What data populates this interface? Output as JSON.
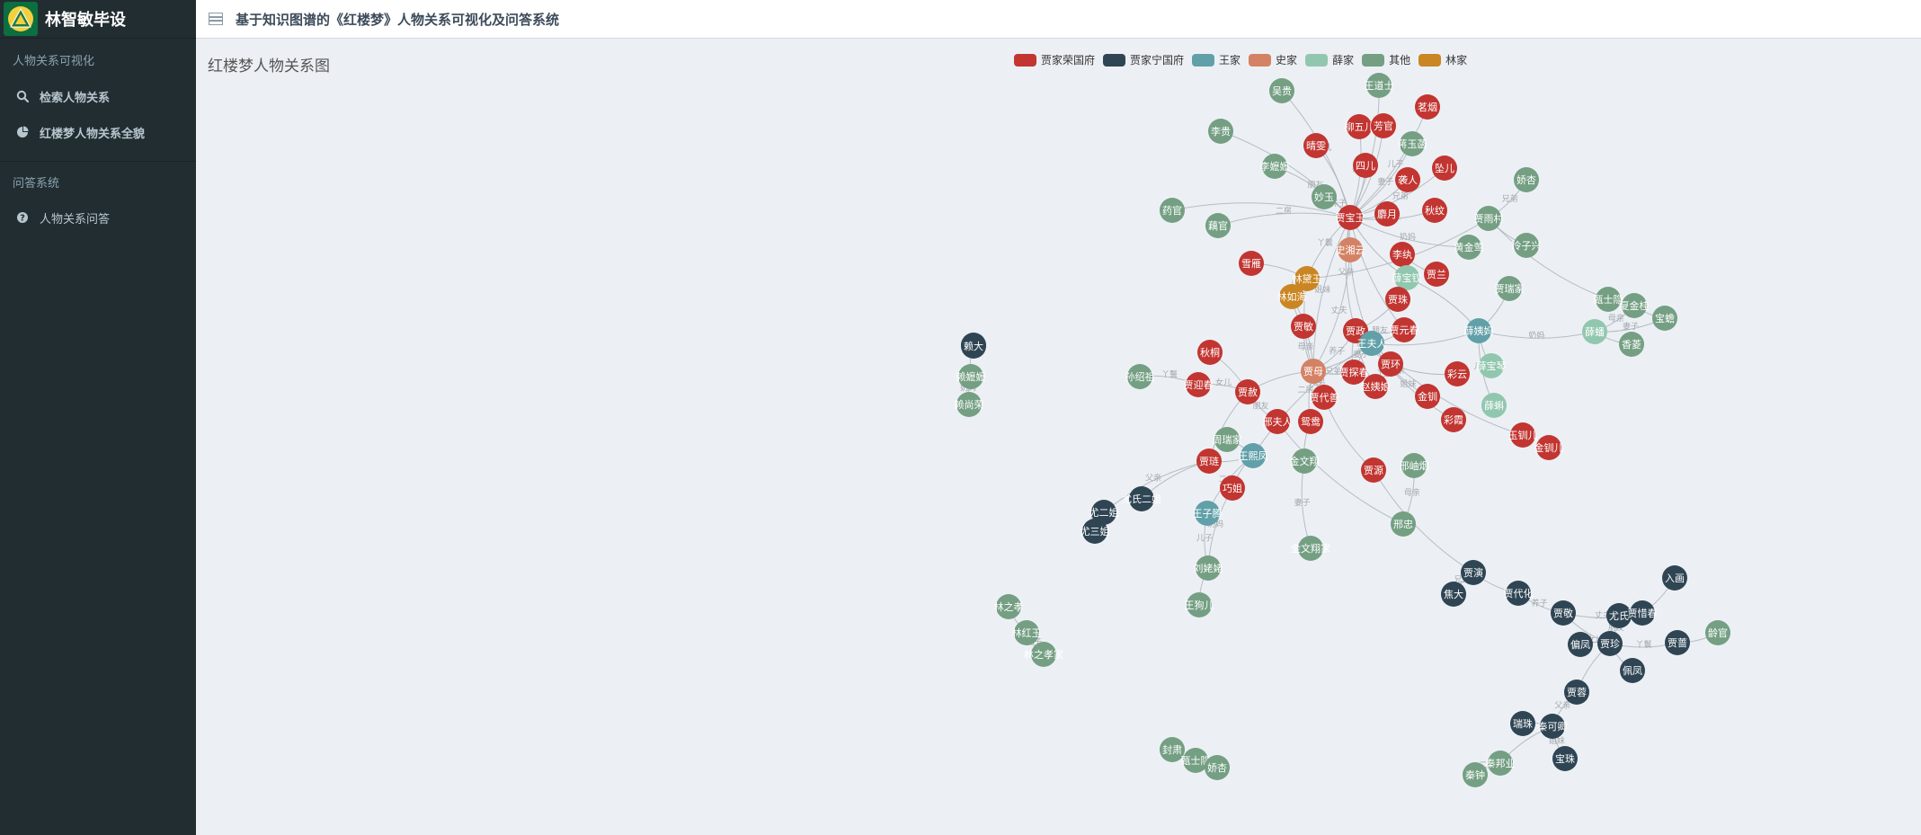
{
  "app": {
    "brand_title": "林智敏毕设",
    "page_title": "基于知识图谱的《红楼梦》人物关系可视化及问答系统"
  },
  "sidebar": {
    "section1": "人物关系可视化",
    "items1": [
      {
        "label": "检索人物关系",
        "icon": "search-icon"
      },
      {
        "label": "红楼梦人物关系全貌",
        "icon": "pie-chart-icon"
      }
    ],
    "section2": "问答系统",
    "items2": [
      {
        "label": "人物关系问答",
        "icon": "question-circle-icon"
      }
    ]
  },
  "graph": {
    "title": "红楼梦人物关系图",
    "legend": [
      {
        "label": "贾家荣国府",
        "color": "#c23531"
      },
      {
        "label": "贾家宁国府",
        "color": "#2f4554"
      },
      {
        "label": "王家",
        "color": "#61a0a8"
      },
      {
        "label": "史家",
        "color": "#d48265"
      },
      {
        "label": "薛家",
        "color": "#91c7ae"
      },
      {
        "label": "其他",
        "color": "#749f83"
      },
      {
        "label": "林家",
        "color": "#ca8622"
      }
    ],
    "nodes": [
      {
        "id": "吴贵",
        "g": 5
      },
      {
        "id": "王道士",
        "g": 5
      },
      {
        "id": "茗烟",
        "g": 0
      },
      {
        "id": "李贵",
        "g": 5
      },
      {
        "id": "晴雯",
        "g": 0
      },
      {
        "id": "柳五儿",
        "g": 0
      },
      {
        "id": "芳官",
        "g": 0
      },
      {
        "id": "蒋玉菡",
        "g": 5
      },
      {
        "id": "四儿",
        "g": 0
      },
      {
        "id": "坠儿",
        "g": 0
      },
      {
        "id": "娇杏",
        "g": 5
      },
      {
        "id": "李嬷嬷",
        "g": 5
      },
      {
        "id": "袭人",
        "g": 0
      },
      {
        "id": "妙玉",
        "g": 5
      },
      {
        "id": "药官",
        "g": 5
      },
      {
        "id": "藕官",
        "g": 5
      },
      {
        "id": "贾宝玉",
        "g": 0
      },
      {
        "id": "麝月",
        "g": 0
      },
      {
        "id": "秋纹",
        "g": 0
      },
      {
        "id": "贾雨村",
        "g": 5
      },
      {
        "id": "黄金莺",
        "g": 5
      },
      {
        "id": "冷子兴",
        "g": 5
      },
      {
        "id": "史湘云",
        "g": 3
      },
      {
        "id": "李纨",
        "g": 0
      },
      {
        "id": "雪雁",
        "g": 0
      },
      {
        "id": "林黛玉",
        "g": 6
      },
      {
        "id": "薛宝钗",
        "g": 4
      },
      {
        "id": "贾兰",
        "g": 0
      },
      {
        "id": "林如海",
        "g": 6
      },
      {
        "id": "贾珠",
        "g": 0
      },
      {
        "id": "贾瑞家",
        "g": 5
      },
      {
        "id": "贾敏",
        "g": 0
      },
      {
        "id": "贾政",
        "g": 0
      },
      {
        "id": "贾元春",
        "g": 0
      },
      {
        "id": "王夫人",
        "g": 2
      },
      {
        "id": "薛姨妈",
        "g": 2
      },
      {
        "id": "薛蟠",
        "g": 4
      },
      {
        "id": "夏金桂",
        "g": 5
      },
      {
        "id": "宝蟾",
        "g": 5
      },
      {
        "id": "香菱",
        "g": 5
      },
      {
        "id": "甄士隐",
        "g": 5
      },
      {
        "id": "秋桐",
        "g": 0
      },
      {
        "id": "焦大",
        "g": 1
      },
      {
        "id": "贾母",
        "g": 3
      },
      {
        "id": "贾探春",
        "g": 0
      },
      {
        "id": "贾环",
        "g": 0
      },
      {
        "id": "彩云",
        "g": 0
      },
      {
        "id": "薛宝琴",
        "g": 4
      },
      {
        "id": "孙绍祖",
        "g": 5
      },
      {
        "id": "贾迎春",
        "g": 0
      },
      {
        "id": "贾赦",
        "g": 0
      },
      {
        "id": "贾代善",
        "g": 0
      },
      {
        "id": "赵姨娘",
        "g": 0
      },
      {
        "id": "金钏",
        "g": 0
      },
      {
        "id": "薛蝌",
        "g": 4
      },
      {
        "id": "邢夫人",
        "g": 0
      },
      {
        "id": "鸳鸯",
        "g": 0
      },
      {
        "id": "彩霞",
        "g": 0
      },
      {
        "id": "玉钏儿",
        "g": 0
      },
      {
        "id": "金钏儿",
        "g": 0
      },
      {
        "id": "赖大",
        "g": 1
      },
      {
        "id": "赖嬷嬷",
        "g": 5
      },
      {
        "id": "赖尚荣",
        "g": 5
      },
      {
        "id": "周瑞家",
        "g": 5
      },
      {
        "id": "王熙凤",
        "g": 2
      },
      {
        "id": "贾琏",
        "g": 0
      },
      {
        "id": "金文翔",
        "g": 5
      },
      {
        "id": "贾源",
        "g": 0
      },
      {
        "id": "邢岫烟",
        "g": 5
      },
      {
        "id": "尤氏二姐",
        "g": 1
      },
      {
        "id": "尤二姐",
        "g": 1
      },
      {
        "id": "尤三姐",
        "g": 1
      },
      {
        "id": "巧姐",
        "g": 0
      },
      {
        "id": "王子腾",
        "g": 2
      },
      {
        "id": "邢忠",
        "g": 5
      },
      {
        "id": "金文翔家",
        "g": 5
      },
      {
        "id": "刘姥姥",
        "g": 5
      },
      {
        "id": "王狗儿",
        "g": 5
      },
      {
        "id": "林之孝",
        "g": 5
      },
      {
        "id": "林红玉",
        "g": 5
      },
      {
        "id": "林之孝家",
        "g": 5
      },
      {
        "id": "贾演",
        "g": 1
      },
      {
        "id": "焦大2",
        "g": 1
      },
      {
        "id": "贾代化",
        "g": 1
      },
      {
        "id": "入画",
        "g": 1
      },
      {
        "id": "贾敬",
        "g": 1
      },
      {
        "id": "尤氏",
        "g": 1
      },
      {
        "id": "贾惜春",
        "g": 1
      },
      {
        "id": "偏凤",
        "g": 1
      },
      {
        "id": "贾珍",
        "g": 1
      },
      {
        "id": "贾蔷",
        "g": 1
      },
      {
        "id": "龄官",
        "g": 5
      },
      {
        "id": "佩凤",
        "g": 1
      },
      {
        "id": "贾蓉",
        "g": 1
      },
      {
        "id": "瑞珠",
        "g": 1
      },
      {
        "id": "秦可卿",
        "g": 1
      },
      {
        "id": "宝珠",
        "g": 1
      },
      {
        "id": "封肃",
        "g": 5
      },
      {
        "id": "甄士隐2",
        "g": 5
      },
      {
        "id": "娇杏2",
        "g": 5
      },
      {
        "id": "秦邦业",
        "g": 5
      },
      {
        "id": "秦钟",
        "g": 5
      }
    ],
    "edge_labels": [
      "儿子",
      "女儿",
      "母亲",
      "丫鬟",
      "妻子",
      "父亲",
      "兄弟",
      "姐妹",
      "养子",
      "二房",
      "丈夫",
      "奶妈",
      "朋友"
    ]
  }
}
